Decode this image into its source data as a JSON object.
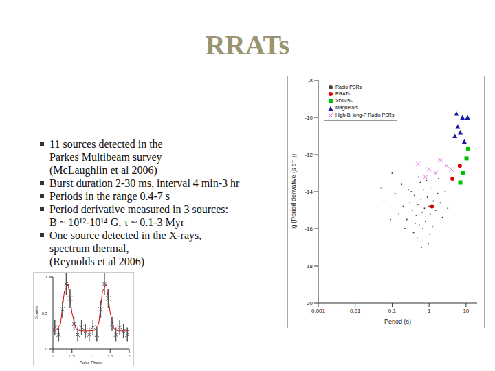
{
  "title": "RRATs",
  "bullets": [
    [
      "11 sources detected in the",
      "Parkes Multibeam survey",
      "(McLaughlin et al 2006)"
    ],
    [
      "Burst duration 2-30 ms, interval 4 min-3 hr"
    ],
    [
      "Periods in the range 0.4-7 s"
    ],
    [
      "Period derivative measured in 3 sources:",
      "B ~ 10¹²-10¹⁴ G, τ ~ 0.1-3 Myr"
    ],
    [
      "One source detected in the X-rays,",
      "spectrum thermal,",
      "(Reynolds et al 2006)"
    ]
  ],
  "chart_data": [
    {
      "type": "scatter",
      "x_label": "Period (s)",
      "y_label": "lg (Period derivative (s s⁻¹))",
      "log": "x",
      "xlim": [
        0.001,
        20
      ],
      "xticks": [
        0.001,
        0.01,
        0.1,
        1,
        10
      ],
      "ylim": [
        -20,
        -8
      ],
      "yticks": [
        -20,
        -18,
        -16,
        -14,
        -12,
        -10,
        -8
      ],
      "legend": "top-left",
      "series": [
        {
          "name": "Radio PSRs",
          "color": "#444444",
          "marker": "dot",
          "x": [
            0.15,
            0.2,
            0.25,
            0.3,
            0.35,
            0.4,
            0.45,
            0.5,
            0.55,
            0.6,
            0.65,
            0.7,
            0.75,
            0.8,
            0.9,
            1.0,
            1.1,
            1.2,
            1.3,
            1.5,
            1.7,
            2.0,
            2.3,
            2.7,
            3.2,
            0.12,
            0.18,
            0.28,
            0.38,
            0.48,
            0.58,
            0.68,
            0.85,
            1.05,
            1.25,
            0.33,
            0.42,
            0.52,
            0.62,
            0.95,
            0.09,
            0.1,
            0.22,
            1.8,
            0.06,
            0.05
          ],
          "values": [
            -15.2,
            -14.8,
            -15.5,
            -14.6,
            -15.0,
            -14.2,
            -15.3,
            -14.7,
            -15.8,
            -14.4,
            -15.1,
            -13.9,
            -14.9,
            -15.6,
            -14.3,
            -14.8,
            -15.2,
            -13.8,
            -14.5,
            -15.0,
            -14.1,
            -14.6,
            -15.4,
            -14.0,
            -14.9,
            -14.1,
            -13.6,
            -13.9,
            -16.2,
            -16.5,
            -13.5,
            -16.0,
            -13.4,
            -16.3,
            -15.9,
            -14.0,
            -15.7,
            -13.2,
            -17.0,
            -16.8,
            -15.5,
            -13.0,
            -16.0,
            -13.3,
            -14.5,
            -13.8
          ]
        },
        {
          "name": "RRATs",
          "color": "#e00000",
          "marker": "circle",
          "x": [
            1.2,
            4.3,
            6.8
          ],
          "values": [
            -14.8,
            -13.3,
            -12.6
          ]
        },
        {
          "name": "XDINSs",
          "color": "#00c000",
          "marker": "square",
          "x": [
            7.0,
            8.4,
            10.3,
            11.4
          ],
          "values": [
            -13.5,
            -13.0,
            -12.2,
            -11.7
          ]
        },
        {
          "name": "Magnetars",
          "color": "#1a1aa0",
          "marker": "triangle",
          "x": [
            5.0,
            5.5,
            6.0,
            7.0,
            8.0,
            9.0,
            11.0
          ],
          "values": [
            -11.0,
            -9.8,
            -10.5,
            -10.8,
            -10.0,
            -11.3,
            -10.0
          ]
        },
        {
          "name": "High-B, long-P Radio PSRs",
          "color": "#e070e0",
          "marker": "cross",
          "x": [
            0.5,
            0.8,
            1.0,
            1.5,
            2.0,
            3.0,
            4.0
          ],
          "values": [
            -12.5,
            -13.2,
            -12.8,
            -13.0,
            -12.3,
            -12.6,
            -12.8
          ]
        }
      ]
    },
    {
      "type": "line",
      "x_label": "Pulse Phase",
      "y_label": "Counts",
      "xlim": [
        0,
        2
      ],
      "xticks": [
        0,
        0.5,
        1,
        1.5,
        2
      ],
      "ylim": [
        0,
        1
      ],
      "yticks": [
        0,
        0.5,
        1
      ],
      "series": [
        {
          "type": "line",
          "color": "#e00000",
          "x": [
            0,
            0.1,
            0.2,
            0.3,
            0.4,
            0.5,
            0.6,
            0.7,
            0.8,
            0.9,
            1.0,
            1.1,
            1.2,
            1.3,
            1.4,
            1.5,
            1.6,
            1.7,
            1.8,
            1.9,
            2.0
          ],
          "values": [
            0.25,
            0.26,
            0.35,
            0.8,
            0.9,
            0.5,
            0.28,
            0.25,
            0.25,
            0.25,
            0.25,
            0.26,
            0.35,
            0.8,
            0.9,
            0.5,
            0.28,
            0.25,
            0.25,
            0.25,
            0.25
          ]
        },
        {
          "type": "scatter",
          "color": "#555555",
          "marker": "cross",
          "x": [
            0.05,
            0.15,
            0.25,
            0.35,
            0.45,
            0.55,
            0.65,
            0.75,
            0.85,
            0.95,
            1.05,
            1.15,
            1.25,
            1.35,
            1.45,
            1.55,
            1.65,
            1.75,
            1.85,
            1.95
          ],
          "values": [
            0.3,
            0.2,
            0.55,
            0.9,
            0.7,
            0.35,
            0.2,
            0.3,
            0.25,
            0.2,
            0.3,
            0.2,
            0.55,
            0.9,
            0.7,
            0.35,
            0.2,
            0.3,
            0.25,
            0.2
          ],
          "errors": [
            0.1,
            0.1,
            0.12,
            0.15,
            0.13,
            0.1,
            0.1,
            0.1,
            0.1,
            0.1,
            0.1,
            0.1,
            0.12,
            0.15,
            0.13,
            0.1,
            0.1,
            0.1,
            0.1,
            0.1
          ]
        }
      ]
    }
  ]
}
